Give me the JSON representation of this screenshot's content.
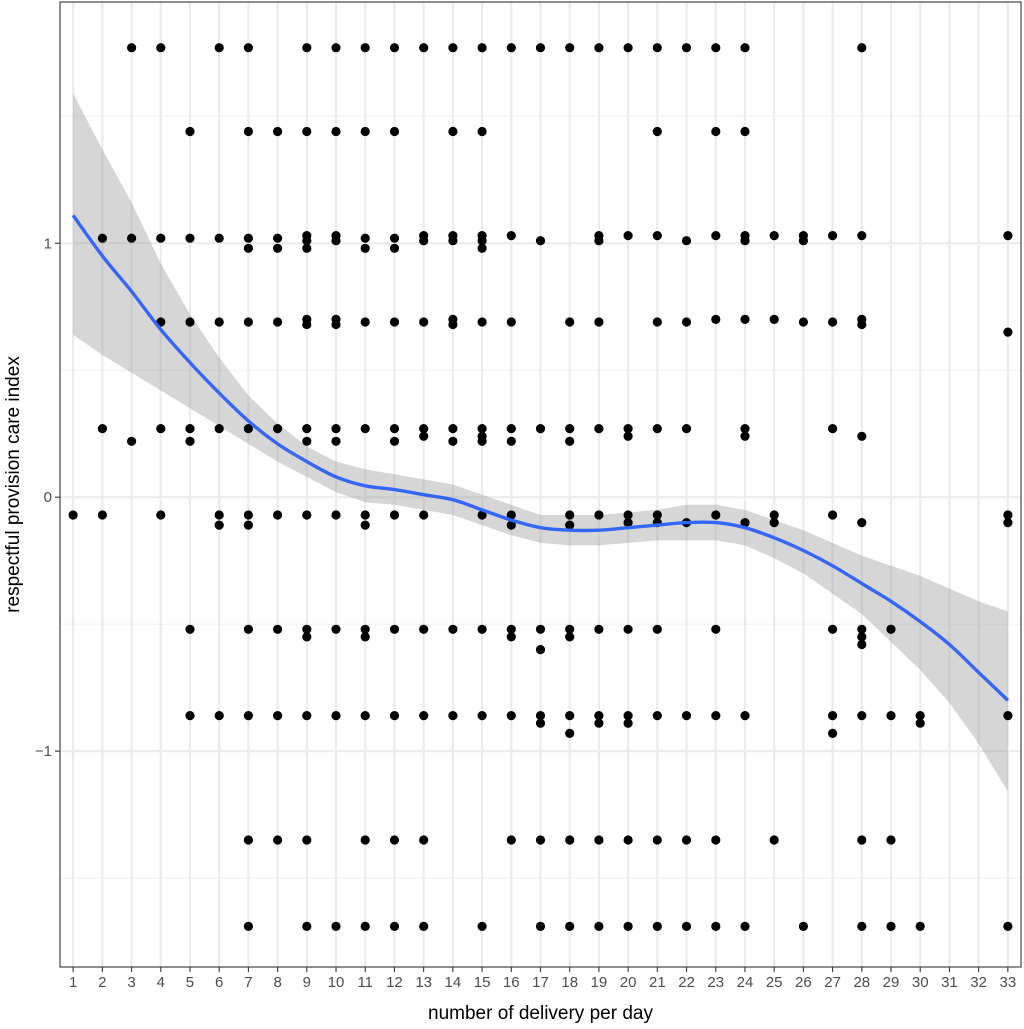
{
  "chart_data": {
    "type": "scatter",
    "title": "",
    "xlabel": "number of delivery per day",
    "ylabel": "respectful provision care index",
    "xlim": [
      0.55,
      33.45
    ],
    "ylim": [
      -1.85,
      1.95
    ],
    "x_ticks": [
      1,
      2,
      3,
      4,
      5,
      6,
      7,
      8,
      9,
      10,
      11,
      12,
      13,
      14,
      15,
      16,
      17,
      18,
      19,
      20,
      21,
      22,
      23,
      24,
      25,
      26,
      27,
      28,
      29,
      30,
      31,
      32,
      33
    ],
    "y_ticks": [
      -1,
      0,
      1
    ],
    "y_tick_labels": [
      "−1",
      "0",
      "1"
    ],
    "grid": true,
    "legend": "none",
    "point_color": "#000000",
    "smooth_color": "#3366FF",
    "band_color": "#999999",
    "points": [
      [
        1,
        -0.07
      ],
      [
        2,
        1.02
      ],
      [
        2,
        0.27
      ],
      [
        2,
        -0.07
      ],
      [
        3,
        1.77
      ],
      [
        3,
        1.02
      ],
      [
        3,
        0.22
      ],
      [
        4,
        1.77
      ],
      [
        4,
        1.02
      ],
      [
        4,
        0.69
      ],
      [
        4,
        0.27
      ],
      [
        4,
        -0.07
      ],
      [
        5,
        1.44
      ],
      [
        5,
        1.02
      ],
      [
        5,
        0.69
      ],
      [
        5,
        0.27
      ],
      [
        5,
        0.22
      ],
      [
        5,
        -0.52
      ],
      [
        5,
        -0.86
      ],
      [
        6,
        1.77
      ],
      [
        6,
        1.02
      ],
      [
        6,
        0.69
      ],
      [
        6,
        0.27
      ],
      [
        6,
        -0.07
      ],
      [
        6,
        -0.11
      ],
      [
        6,
        -0.86
      ],
      [
        7,
        1.77
      ],
      [
        7,
        1.44
      ],
      [
        7,
        1.02
      ],
      [
        7,
        0.98
      ],
      [
        7,
        0.69
      ],
      [
        7,
        0.27
      ],
      [
        7,
        -0.07
      ],
      [
        7,
        -0.11
      ],
      [
        7,
        -0.52
      ],
      [
        7,
        -0.86
      ],
      [
        7,
        -1.35
      ],
      [
        7,
        -1.69
      ],
      [
        8,
        1.44
      ],
      [
        8,
        1.02
      ],
      [
        8,
        0.98
      ],
      [
        8,
        0.69
      ],
      [
        8,
        0.27
      ],
      [
        8,
        -0.07
      ],
      [
        8,
        -0.52
      ],
      [
        8,
        -0.86
      ],
      [
        8,
        -1.35
      ],
      [
        9,
        1.77
      ],
      [
        9,
        1.44
      ],
      [
        9,
        1.03
      ],
      [
        9,
        1.01
      ],
      [
        9,
        0.98
      ],
      [
        9,
        0.7
      ],
      [
        9,
        0.68
      ],
      [
        9,
        0.27
      ],
      [
        9,
        0.22
      ],
      [
        9,
        -0.07
      ],
      [
        9,
        -0.52
      ],
      [
        9,
        -0.55
      ],
      [
        9,
        -0.86
      ],
      [
        9,
        -1.35
      ],
      [
        9,
        -1.69
      ],
      [
        10,
        1.77
      ],
      [
        10,
        1.44
      ],
      [
        10,
        1.03
      ],
      [
        10,
        1.01
      ],
      [
        10,
        0.7
      ],
      [
        10,
        0.68
      ],
      [
        10,
        0.27
      ],
      [
        10,
        0.22
      ],
      [
        10,
        -0.07
      ],
      [
        10,
        -0.52
      ],
      [
        10,
        -0.86
      ],
      [
        10,
        -1.69
      ],
      [
        11,
        1.77
      ],
      [
        11,
        1.44
      ],
      [
        11,
        1.02
      ],
      [
        11,
        0.98
      ],
      [
        11,
        0.69
      ],
      [
        11,
        0.27
      ],
      [
        11,
        -0.07
      ],
      [
        11,
        -0.11
      ],
      [
        11,
        -0.52
      ],
      [
        11,
        -0.55
      ],
      [
        11,
        -0.86
      ],
      [
        11,
        -1.35
      ],
      [
        11,
        -1.69
      ],
      [
        12,
        1.77
      ],
      [
        12,
        1.44
      ],
      [
        12,
        1.02
      ],
      [
        12,
        0.98
      ],
      [
        12,
        0.69
      ],
      [
        12,
        0.27
      ],
      [
        12,
        0.22
      ],
      [
        12,
        -0.07
      ],
      [
        12,
        -0.52
      ],
      [
        12,
        -0.86
      ],
      [
        12,
        -1.35
      ],
      [
        12,
        -1.69
      ],
      [
        13,
        1.77
      ],
      [
        13,
        1.03
      ],
      [
        13,
        1.01
      ],
      [
        13,
        0.69
      ],
      [
        13,
        0.27
      ],
      [
        13,
        0.24
      ],
      [
        13,
        -0.07
      ],
      [
        13,
        -0.52
      ],
      [
        13,
        -0.86
      ],
      [
        13,
        -1.35
      ],
      [
        13,
        -1.69
      ],
      [
        14,
        1.77
      ],
      [
        14,
        1.44
      ],
      [
        14,
        1.03
      ],
      [
        14,
        1.01
      ],
      [
        14,
        0.7
      ],
      [
        14,
        0.68
      ],
      [
        14,
        0.27
      ],
      [
        14,
        0.22
      ],
      [
        14,
        -0.52
      ],
      [
        14,
        -0.86
      ],
      [
        15,
        1.77
      ],
      [
        15,
        1.44
      ],
      [
        15,
        1.03
      ],
      [
        15,
        1.01
      ],
      [
        15,
        0.98
      ],
      [
        15,
        0.69
      ],
      [
        15,
        0.27
      ],
      [
        15,
        0.24
      ],
      [
        15,
        0.22
      ],
      [
        15,
        -0.07
      ],
      [
        15,
        -0.52
      ],
      [
        15,
        -0.86
      ],
      [
        15,
        -1.69
      ],
      [
        16,
        1.77
      ],
      [
        16,
        1.03
      ],
      [
        16,
        0.69
      ],
      [
        16,
        0.27
      ],
      [
        16,
        0.22
      ],
      [
        16,
        -0.07
      ],
      [
        16,
        -0.11
      ],
      [
        16,
        -0.52
      ],
      [
        16,
        -0.55
      ],
      [
        16,
        -0.86
      ],
      [
        16,
        -1.35
      ],
      [
        17,
        1.77
      ],
      [
        17,
        1.01
      ],
      [
        17,
        0.27
      ],
      [
        17,
        -0.52
      ],
      [
        17,
        -0.6
      ],
      [
        17,
        -0.86
      ],
      [
        17,
        -0.89
      ],
      [
        17,
        -1.35
      ],
      [
        17,
        -1.69
      ],
      [
        18,
        1.77
      ],
      [
        18,
        0.69
      ],
      [
        18,
        0.27
      ],
      [
        18,
        0.22
      ],
      [
        18,
        -0.07
      ],
      [
        18,
        -0.11
      ],
      [
        18,
        -0.52
      ],
      [
        18,
        -0.55
      ],
      [
        18,
        -0.86
      ],
      [
        18,
        -0.93
      ],
      [
        18,
        -1.35
      ],
      [
        18,
        -1.69
      ],
      [
        19,
        1.77
      ],
      [
        19,
        1.03
      ],
      [
        19,
        1.01
      ],
      [
        19,
        0.69
      ],
      [
        19,
        0.27
      ],
      [
        19,
        -0.07
      ],
      [
        19,
        -0.52
      ],
      [
        19,
        -0.86
      ],
      [
        19,
        -0.89
      ],
      [
        19,
        -1.35
      ],
      [
        19,
        -1.69
      ],
      [
        20,
        1.77
      ],
      [
        20,
        1.03
      ],
      [
        20,
        0.27
      ],
      [
        20,
        0.24
      ],
      [
        20,
        -0.07
      ],
      [
        20,
        -0.1
      ],
      [
        20,
        -0.52
      ],
      [
        20,
        -0.86
      ],
      [
        20,
        -0.89
      ],
      [
        20,
        -1.35
      ],
      [
        20,
        -1.69
      ],
      [
        21,
        1.77
      ],
      [
        21,
        1.44
      ],
      [
        21,
        1.03
      ],
      [
        21,
        0.69
      ],
      [
        21,
        0.27
      ],
      [
        21,
        -0.07
      ],
      [
        21,
        -0.1
      ],
      [
        21,
        -0.52
      ],
      [
        21,
        -0.86
      ],
      [
        21,
        -1.35
      ],
      [
        21,
        -1.69
      ],
      [
        22,
        1.77
      ],
      [
        22,
        1.01
      ],
      [
        22,
        0.69
      ],
      [
        22,
        0.27
      ],
      [
        22,
        -0.1
      ],
      [
        22,
        -0.86
      ],
      [
        22,
        -1.35
      ],
      [
        22,
        -1.69
      ],
      [
        23,
        1.77
      ],
      [
        23,
        1.44
      ],
      [
        23,
        1.03
      ],
      [
        23,
        0.7
      ],
      [
        23,
        -0.07
      ],
      [
        23,
        -0.52
      ],
      [
        23,
        -0.86
      ],
      [
        23,
        -1.35
      ],
      [
        23,
        -1.69
      ],
      [
        24,
        1.77
      ],
      [
        24,
        1.44
      ],
      [
        24,
        1.03
      ],
      [
        24,
        1.01
      ],
      [
        24,
        0.7
      ],
      [
        24,
        0.27
      ],
      [
        24,
        0.24
      ],
      [
        24,
        -0.1
      ],
      [
        24,
        -0.86
      ],
      [
        24,
        -1.69
      ],
      [
        25,
        1.03
      ],
      [
        25,
        0.7
      ],
      [
        25,
        -0.07
      ],
      [
        25,
        -0.1
      ],
      [
        25,
        -1.35
      ],
      [
        26,
        1.03
      ],
      [
        26,
        1.01
      ],
      [
        26,
        0.69
      ],
      [
        26,
        -1.69
      ],
      [
        27,
        1.03
      ],
      [
        27,
        0.69
      ],
      [
        27,
        0.27
      ],
      [
        27,
        -0.07
      ],
      [
        27,
        -0.52
      ],
      [
        27,
        -0.86
      ],
      [
        27,
        -0.93
      ],
      [
        28,
        1.77
      ],
      [
        28,
        1.03
      ],
      [
        28,
        0.7
      ],
      [
        28,
        0.68
      ],
      [
        28,
        0.24
      ],
      [
        28,
        -0.1
      ],
      [
        28,
        -0.52
      ],
      [
        28,
        -0.55
      ],
      [
        28,
        -0.58
      ],
      [
        28,
        -0.86
      ],
      [
        28,
        -1.35
      ],
      [
        28,
        -1.69
      ],
      [
        29,
        -0.52
      ],
      [
        29,
        -0.86
      ],
      [
        29,
        -1.35
      ],
      [
        29,
        -1.69
      ],
      [
        30,
        -0.86
      ],
      [
        30,
        -0.89
      ],
      [
        30,
        -1.69
      ],
      [
        33,
        1.03
      ],
      [
        33,
        0.65
      ],
      [
        33,
        -0.07
      ],
      [
        33,
        -0.1
      ],
      [
        33,
        -0.86
      ],
      [
        33,
        -1.69
      ]
    ],
    "smooth": {
      "x": [
        1,
        2,
        3,
        4,
        5,
        6,
        7,
        8,
        9,
        10,
        11,
        12,
        13,
        14,
        15,
        16,
        17,
        18,
        19,
        20,
        21,
        22,
        23,
        24,
        25,
        26,
        27,
        28,
        29,
        30,
        31,
        32,
        33
      ],
      "y": [
        1.11,
        0.95,
        0.81,
        0.66,
        0.53,
        0.41,
        0.3,
        0.21,
        0.14,
        0.08,
        0.045,
        0.03,
        0.01,
        -0.01,
        -0.05,
        -0.09,
        -0.12,
        -0.13,
        -0.13,
        -0.12,
        -0.11,
        -0.1,
        -0.1,
        -0.12,
        -0.16,
        -0.21,
        -0.27,
        -0.34,
        -0.41,
        -0.49,
        -0.58,
        -0.69,
        -0.8
      ],
      "ymin": [
        0.64,
        0.56,
        0.49,
        0.42,
        0.35,
        0.28,
        0.21,
        0.14,
        0.08,
        0.02,
        -0.02,
        -0.03,
        -0.05,
        -0.07,
        -0.11,
        -0.15,
        -0.18,
        -0.19,
        -0.19,
        -0.18,
        -0.17,
        -0.17,
        -0.17,
        -0.19,
        -0.24,
        -0.3,
        -0.38,
        -0.46,
        -0.57,
        -0.68,
        -0.81,
        -0.97,
        -1.16
      ],
      "ymax": [
        1.59,
        1.37,
        1.16,
        0.92,
        0.72,
        0.55,
        0.4,
        0.29,
        0.2,
        0.14,
        0.11,
        0.09,
        0.07,
        0.05,
        0.01,
        -0.03,
        -0.07,
        -0.07,
        -0.07,
        -0.06,
        -0.05,
        -0.03,
        -0.03,
        -0.05,
        -0.09,
        -0.13,
        -0.18,
        -0.23,
        -0.27,
        -0.31,
        -0.36,
        -0.41,
        -0.45
      ]
    }
  }
}
